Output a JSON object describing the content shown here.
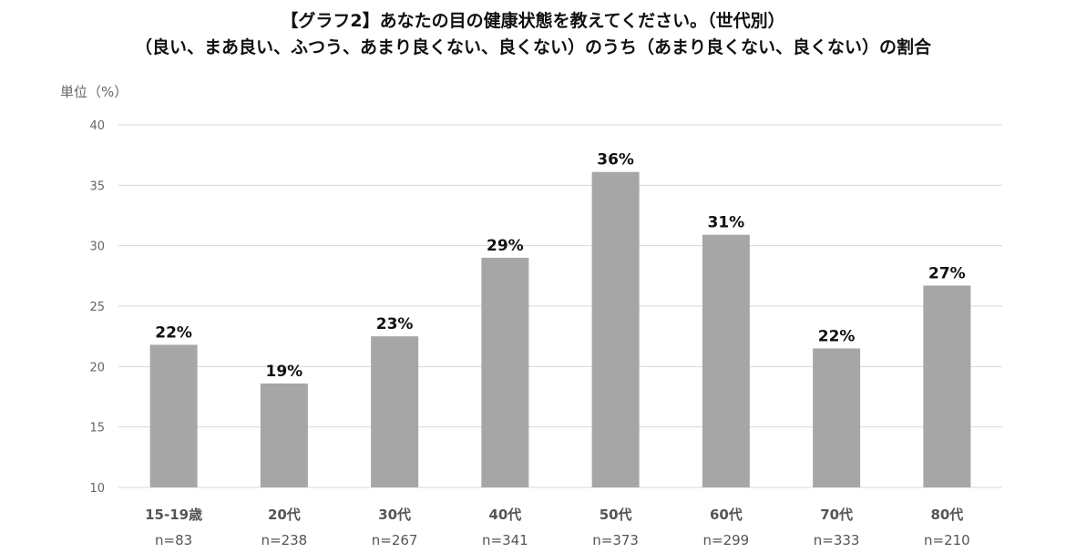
{
  "chart_data": {
    "type": "bar",
    "title": "【グラフ2】あなたの目の健康状態を教えてください。（世代別）",
    "subtitle": "（良い、まあ良い、ふつう、あまり良くない、良くない）のうち（あまり良くない、良くない）の割合",
    "ylabel": "単位（%）",
    "xlabel": "",
    "ylim": [
      10,
      40
    ],
    "yticks": [
      10,
      15,
      20,
      25,
      30,
      35,
      40
    ],
    "grid": true,
    "categories": [
      "15-19歳",
      "20代",
      "30代",
      "40代",
      "50代",
      "60代",
      "70代",
      "80代"
    ],
    "sample_sizes": [
      "n=83",
      "n=238",
      "n=267",
      "n=341",
      "n=373",
      "n=299",
      "n=333",
      "n=210"
    ],
    "values": [
      21.8,
      18.6,
      22.5,
      29.0,
      36.1,
      30.9,
      21.5,
      26.7
    ],
    "data_labels": [
      "22%",
      "19%",
      "23%",
      "29%",
      "36%",
      "31%",
      "22%",
      "27%"
    ],
    "bar_color": "#a6a6a6",
    "grid_color": "#d9d9d9"
  }
}
